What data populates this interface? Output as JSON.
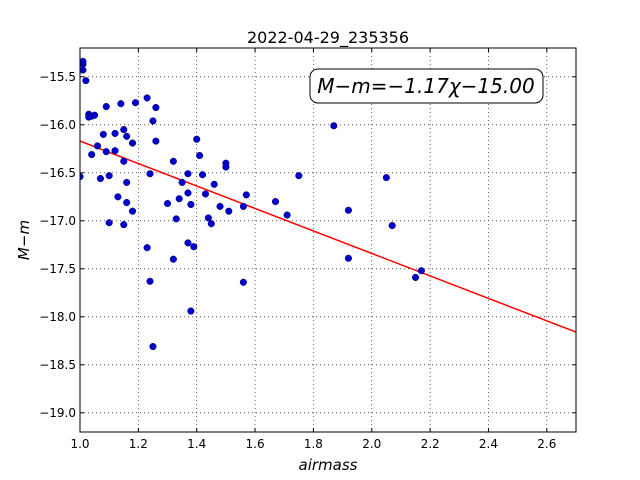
{
  "chart_data": {
    "type": "scatter",
    "title": "2022-04-29_235356",
    "xlabel": "airmass",
    "ylabel": "M−m",
    "annotation": "M−m=−1.17χ−15.00",
    "annotation_position": "top-right",
    "xlim": [
      1.0,
      2.7
    ],
    "ylim": [
      -19.2,
      -15.2
    ],
    "y_inverted": true,
    "grid": true,
    "x_ticks": [
      1.0,
      1.2,
      1.4,
      1.6,
      1.8,
      2.0,
      2.2,
      2.4,
      2.6
    ],
    "x_tick_labels": [
      "1.0",
      "1.2",
      "1.4",
      "1.6",
      "1.8",
      "2.0",
      "2.2",
      "2.4",
      "2.6"
    ],
    "y_ticks": [
      -15.5,
      -16.0,
      -16.5,
      -17.0,
      -17.5,
      -18.0,
      -18.5,
      -19.0
    ],
    "y_tick_labels": [
      "−15.5",
      "−16.0",
      "−16.5",
      "−17.0",
      "−17.5",
      "−18.0",
      "−18.5",
      "−19.0"
    ],
    "fit": {
      "slope": -1.17,
      "intercept": -15.0,
      "color": "#ff0000"
    },
    "points_color": "#0000cc",
    "points": [
      [
        1.0,
        -16.54
      ],
      [
        1.01,
        -15.37
      ],
      [
        1.01,
        -15.34
      ],
      [
        1.01,
        -15.43
      ],
      [
        1.02,
        -15.54
      ],
      [
        1.03,
        -15.89
      ],
      [
        1.03,
        -15.92
      ],
      [
        1.04,
        -15.91
      ],
      [
        1.05,
        -15.9
      ],
      [
        1.04,
        -16.31
      ],
      [
        1.06,
        -16.22
      ],
      [
        1.07,
        -16.56
      ],
      [
        1.08,
        -16.1
      ],
      [
        1.09,
        -16.28
      ],
      [
        1.09,
        -15.81
      ],
      [
        1.1,
        -16.53
      ],
      [
        1.1,
        -17.02
      ],
      [
        1.12,
        -16.27
      ],
      [
        1.12,
        -16.09
      ],
      [
        1.13,
        -16.75
      ],
      [
        1.14,
        -15.78
      ],
      [
        1.15,
        -16.38
      ],
      [
        1.15,
        -17.04
      ],
      [
        1.15,
        -16.05
      ],
      [
        1.16,
        -16.12
      ],
      [
        1.16,
        -16.6
      ],
      [
        1.16,
        -16.81
      ],
      [
        1.18,
        -16.19
      ],
      [
        1.18,
        -16.9
      ],
      [
        1.19,
        -15.77
      ],
      [
        1.23,
        -15.72
      ],
      [
        1.23,
        -17.28
      ],
      [
        1.24,
        -17.63
      ],
      [
        1.24,
        -16.51
      ],
      [
        1.25,
        -15.96
      ],
      [
        1.25,
        -18.31
      ],
      [
        1.26,
        -16.17
      ],
      [
        1.26,
        -15.82
      ],
      [
        1.3,
        -16.82
      ],
      [
        1.32,
        -16.38
      ],
      [
        1.32,
        -17.4
      ],
      [
        1.33,
        -16.98
      ],
      [
        1.34,
        -16.77
      ],
      [
        1.35,
        -16.6
      ],
      [
        1.37,
        -16.51
      ],
      [
        1.37,
        -16.71
      ],
      [
        1.37,
        -17.23
      ],
      [
        1.38,
        -16.83
      ],
      [
        1.38,
        -17.94
      ],
      [
        1.39,
        -17.27
      ],
      [
        1.4,
        -16.15
      ],
      [
        1.41,
        -16.32
      ],
      [
        1.42,
        -16.52
      ],
      [
        1.43,
        -16.72
      ],
      [
        1.44,
        -16.97
      ],
      [
        1.45,
        -17.03
      ],
      [
        1.46,
        -16.62
      ],
      [
        1.48,
        -16.85
      ],
      [
        1.5,
        -16.4
      ],
      [
        1.5,
        -16.44
      ],
      [
        1.51,
        -16.9
      ],
      [
        1.56,
        -16.85
      ],
      [
        1.56,
        -17.64
      ],
      [
        1.57,
        -16.73
      ],
      [
        1.67,
        -16.8
      ],
      [
        1.71,
        -16.94
      ],
      [
        1.75,
        -16.53
      ],
      [
        1.87,
        -16.01
      ],
      [
        1.92,
        -16.89
      ],
      [
        1.92,
        -17.39
      ],
      [
        2.05,
        -16.55
      ],
      [
        2.07,
        -17.05
      ],
      [
        2.15,
        -17.59
      ],
      [
        2.17,
        -17.52
      ]
    ]
  }
}
